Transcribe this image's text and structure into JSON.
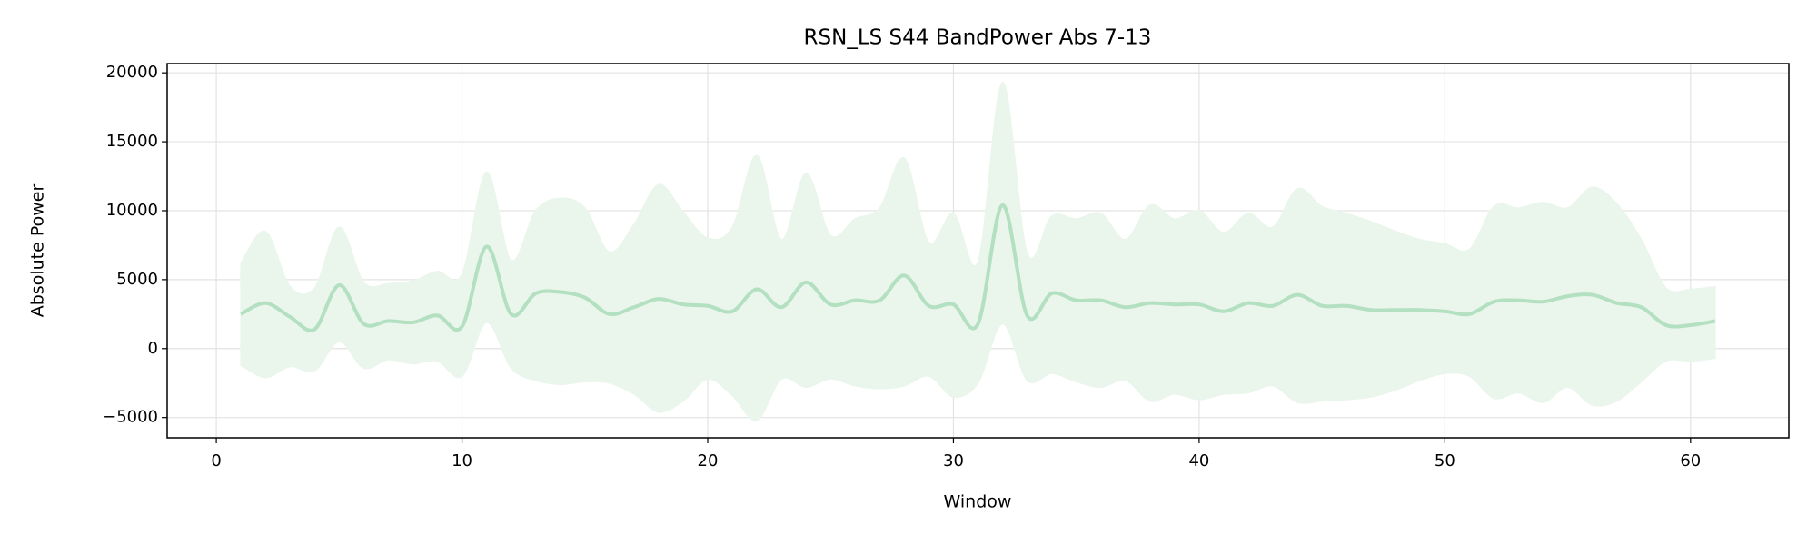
{
  "chart_data": {
    "type": "line",
    "title": "RSN_LS S44 BandPower Abs 7-13",
    "xlabel": "Window",
    "ylabel": "Absolute Power",
    "x": [
      1,
      2,
      3,
      4,
      5,
      6,
      7,
      8,
      9,
      10,
      11,
      12,
      13,
      14,
      15,
      16,
      17,
      18,
      19,
      20,
      21,
      22,
      23,
      24,
      25,
      26,
      27,
      28,
      29,
      30,
      31,
      32,
      33,
      34,
      35,
      36,
      37,
      38,
      39,
      40,
      41,
      42,
      43,
      44,
      45,
      46,
      47,
      48,
      49,
      50,
      51,
      52,
      53,
      54,
      55,
      56,
      57,
      58,
      59,
      60,
      61
    ],
    "values": [
      2500,
      3300,
      2300,
      1400,
      4600,
      1800,
      2000,
      1900,
      2400,
      1600,
      7400,
      2500,
      4000,
      4100,
      3700,
      2500,
      3000,
      3600,
      3200,
      3100,
      2700,
      4300,
      3000,
      4800,
      3200,
      3500,
      3500,
      5300,
      3100,
      3200,
      1800,
      10400,
      2400,
      4000,
      3500,
      3500,
      3000,
      3300,
      3200,
      3200,
      2700,
      3300,
      3100,
      3900,
      3100,
      3100,
      2800,
      2800,
      2800,
      2700,
      2500,
      3400,
      3500,
      3400,
      3800,
      3900,
      3300,
      3000,
      1700,
      1700,
      2000
    ],
    "band": {
      "upper": [
        6200,
        8500,
        4500,
        4400,
        8800,
        4800,
        4700,
        4900,
        5600,
        5400,
        12800,
        6400,
        10000,
        10900,
        10200,
        7000,
        9000,
        11900,
        9900,
        8000,
        8800,
        14000,
        7900,
        12700,
        8200,
        9400,
        10200,
        13800,
        7700,
        9800,
        6300,
        19300,
        6900,
        9600,
        9400,
        9800,
        7900,
        10400,
        9400,
        10000,
        8400,
        9800,
        8800,
        11600,
        10300,
        9800,
        9200,
        8500,
        7900,
        7600,
        7200,
        10300,
        10200,
        10600,
        10200,
        11700,
        10500,
        7900,
        4400,
        4300,
        4500
      ],
      "lower": [
        -1200,
        -2100,
        -1300,
        -1600,
        500,
        -1400,
        -800,
        -1100,
        -900,
        -2000,
        1900,
        -1400,
        -2300,
        -2600,
        -2400,
        -2500,
        -3300,
        -4600,
        -3800,
        -2200,
        -3400,
        -5200,
        -2200,
        -2800,
        -2200,
        -2700,
        -2900,
        -2700,
        -2000,
        -3500,
        -2500,
        1800,
        -2300,
        -1800,
        -2400,
        -2800,
        -2300,
        -3800,
        -3300,
        -3700,
        -3300,
        -3200,
        -2700,
        -3900,
        -3800,
        -3700,
        -3500,
        -3000,
        -2300,
        -1800,
        -2000,
        -3600,
        -3200,
        -3900,
        -2800,
        -4100,
        -3800,
        -2400,
        -900,
        -900,
        -700
      ],
      "color": "#eaf5ec"
    },
    "color": "#b2e0c0",
    "xlim": [
      -2,
      64
    ],
    "xticks": [
      0,
      10,
      20,
      30,
      40,
      50,
      60
    ],
    "ylim": [
      -6470,
      20670
    ],
    "yticks": [
      {
        "value": -5000,
        "label": "−5000"
      },
      0,
      5000,
      10000,
      15000,
      20000
    ],
    "grid": true
  }
}
